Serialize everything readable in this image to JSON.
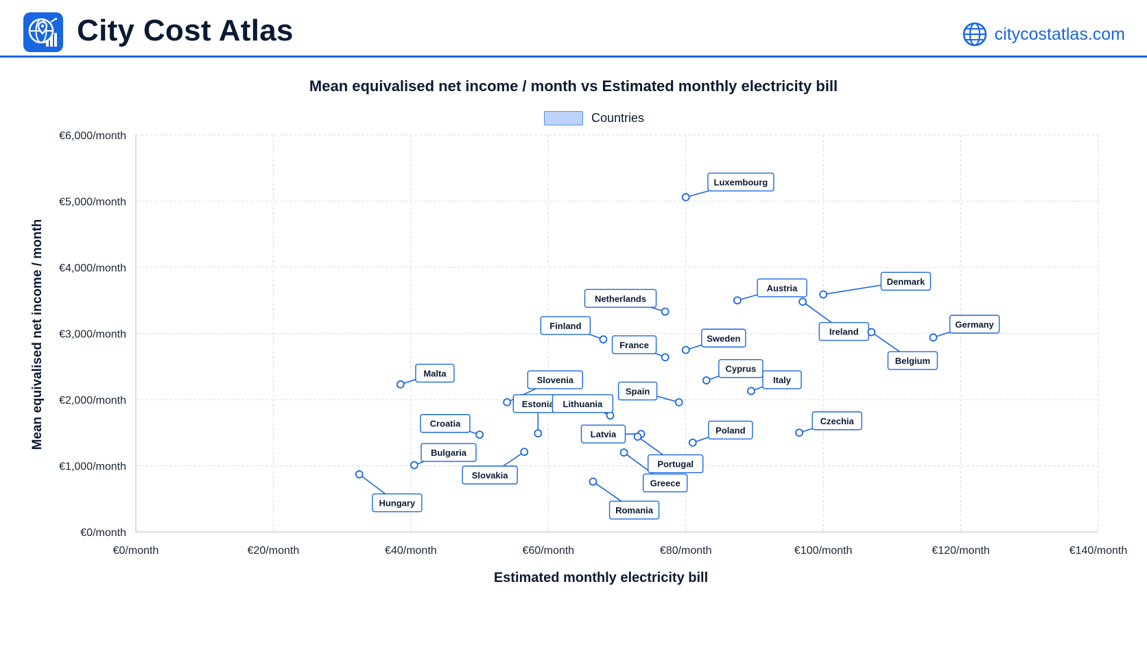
{
  "app": {
    "title": "City Cost Atlas",
    "site": "citycostatlas.com",
    "logo_icon": "globe-pin-chart-icon",
    "site_icon": "globe-icon"
  },
  "colors": {
    "accent": "#1a66e0",
    "marker": "#1a66e0",
    "label_border": "#1a66e0",
    "grid": "#d9dde3",
    "legend_fill": "#bcd4fb"
  },
  "chart_data": {
    "type": "scatter",
    "title": "Mean equivalised net income / month vs Estimated monthly electricity bill",
    "xlabel": "Estimated monthly electricity bill",
    "ylabel": "Mean equivalised net income / month",
    "xlim": [
      0,
      140
    ],
    "ylim": [
      0,
      6000
    ],
    "x_ticks": [
      0,
      20,
      40,
      60,
      80,
      100,
      120,
      140
    ],
    "y_ticks": [
      0,
      1000,
      2000,
      3000,
      4000,
      5000,
      6000
    ],
    "x_tick_labels": [
      "€0/month",
      "€20/month",
      "€40/month",
      "€60/month",
      "€80/month",
      "€100/month",
      "€120/month",
      "€140/month"
    ],
    "y_tick_labels": [
      "€0/month",
      "€1,000/month",
      "€2,000/month",
      "€3,000/month",
      "€4,000/month",
      "€5,000/month",
      "€6,000/month"
    ],
    "grid": true,
    "legend": {
      "position": "top-center",
      "entries": [
        "Countries"
      ]
    },
    "series": [
      {
        "name": "Countries",
        "points": [
          {
            "label": "Luxembourg",
            "x": 80,
            "y": 5060,
            "lx": 88,
            "ly": 5290
          },
          {
            "label": "Denmark",
            "x": 100,
            "y": 3590,
            "lx": 112,
            "ly": 3790
          },
          {
            "label": "Austria",
            "x": 87.5,
            "y": 3500,
            "lx": 94,
            "ly": 3690
          },
          {
            "label": "Netherlands",
            "x": 77,
            "y": 3330,
            "lx": 70.5,
            "ly": 3530
          },
          {
            "label": "Ireland",
            "x": 97,
            "y": 3480,
            "lx": 103,
            "ly": 3030
          },
          {
            "label": "Germany",
            "x": 116,
            "y": 2940,
            "lx": 122,
            "ly": 3140
          },
          {
            "label": "Belgium",
            "x": 107,
            "y": 3020,
            "lx": 113,
            "ly": 2590
          },
          {
            "label": "Finland",
            "x": 68,
            "y": 2910,
            "lx": 62.5,
            "ly": 3120
          },
          {
            "label": "France",
            "x": 77,
            "y": 2640,
            "lx": 72.5,
            "ly": 2830
          },
          {
            "label": "Sweden",
            "x": 80,
            "y": 2750,
            "lx": 85.5,
            "ly": 2930
          },
          {
            "label": "Cyprus",
            "x": 83,
            "y": 2290,
            "lx": 88,
            "ly": 2470
          },
          {
            "label": "Italy",
            "x": 89.5,
            "y": 2130,
            "lx": 94,
            "ly": 2300
          },
          {
            "label": "Malta",
            "x": 38.5,
            "y": 2230,
            "lx": 43.5,
            "ly": 2400
          },
          {
            "label": "Slovenia",
            "x": 54,
            "y": 1960,
            "lx": 61,
            "ly": 2300
          },
          {
            "label": "Spain",
            "x": 79,
            "y": 1960,
            "lx": 73,
            "ly": 2130
          },
          {
            "label": "Estonia",
            "x": 58.5,
            "y": 1490,
            "lx": 58.5,
            "ly": 1940
          },
          {
            "label": "Lithuania",
            "x": 69,
            "y": 1760,
            "lx": 65,
            "ly": 1940
          },
          {
            "label": "Croatia",
            "x": 50,
            "y": 1470,
            "lx": 45,
            "ly": 1640
          },
          {
            "label": "Czechia",
            "x": 96.5,
            "y": 1500,
            "lx": 102,
            "ly": 1680
          },
          {
            "label": "Poland",
            "x": 81,
            "y": 1350,
            "lx": 86.5,
            "ly": 1540
          },
          {
            "label": "Latvia",
            "x": 73.5,
            "y": 1480,
            "lx": 68,
            "ly": 1480
          },
          {
            "label": "Portugal",
            "x": 73,
            "y": 1440,
            "lx": 78.5,
            "ly": 1030
          },
          {
            "label": "Bulgaria",
            "x": 40.5,
            "y": 1010,
            "lx": 45.5,
            "ly": 1200
          },
          {
            "label": "Slovakia",
            "x": 56.5,
            "y": 1210,
            "lx": 51.5,
            "ly": 860
          },
          {
            "label": "Greece",
            "x": 71,
            "y": 1200,
            "lx": 77,
            "ly": 740
          },
          {
            "label": "Hungary",
            "x": 32.5,
            "y": 870,
            "lx": 38,
            "ly": 440
          },
          {
            "label": "Romania",
            "x": 66.5,
            "y": 760,
            "lx": 72.5,
            "ly": 330
          }
        ]
      }
    ]
  }
}
